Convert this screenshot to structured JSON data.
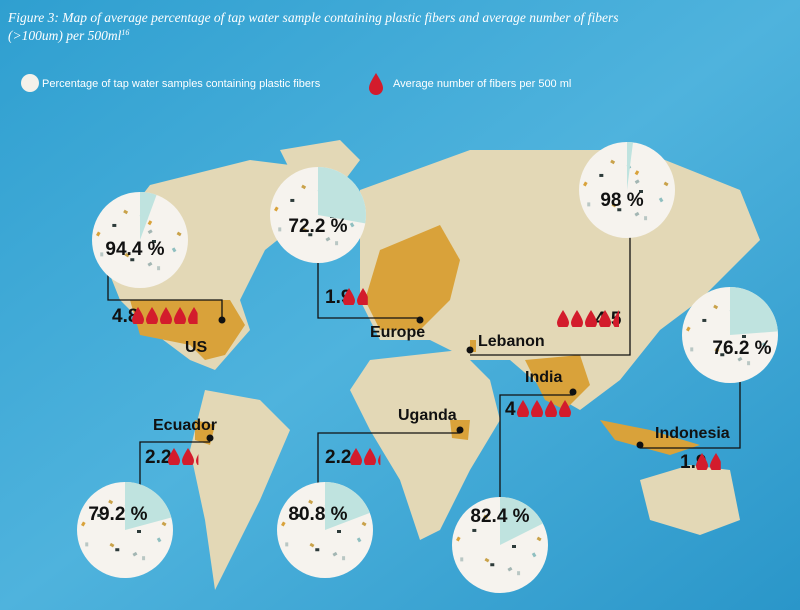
{
  "title": "Figure 3: Map of average percentage of tap water sample containing plastic fibers and average number of fibers (>100um) per 500ml",
  "footnote": "16",
  "legend": {
    "percent": "Percentage of tap water samples containing plastic fibers",
    "fibers": "Average number of fibers per 500 ml"
  },
  "countries": [
    {
      "name": "US",
      "percent": {
        "value": 94.4,
        "label": "94.4 %"
      },
      "fibers": 4.8
    },
    {
      "name": "Europe",
      "percent": {
        "value": 72.2,
        "label": "72.2 %"
      },
      "fibers": 1.9
    },
    {
      "name": "Lebanon",
      "percent": {
        "value": 98,
        "label": "98 %"
      },
      "fibers": 4.5
    },
    {
      "name": "India",
      "percent": {
        "value": 82.4,
        "label": "82.4 %"
      },
      "fibers": 4
    },
    {
      "name": "Indonesia",
      "percent": {
        "value": 76.2,
        "label": "76.2 %"
      },
      "fibers": 1.9
    },
    {
      "name": "Ecuador",
      "percent": {
        "value": 79.2,
        "label": "79.2 %"
      },
      "fibers": 2.2
    },
    {
      "name": "Uganda",
      "percent": {
        "value": 80.8,
        "label": "80.8 %"
      },
      "fibers": 2.2
    }
  ]
}
